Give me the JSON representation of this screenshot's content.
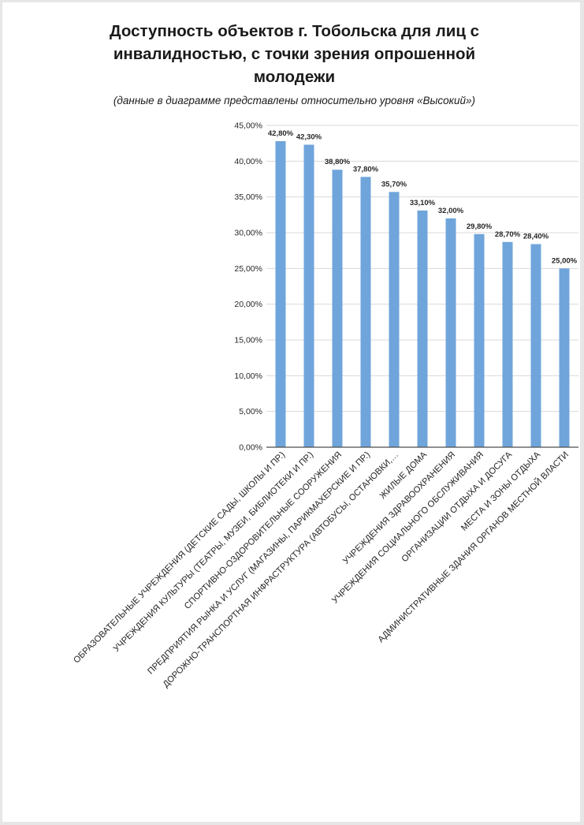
{
  "title_lines": [
    "Доступность объектов г. Тобольска для лиц с",
    "инвалидностью, с точки зрения опрошенной",
    "молодежи"
  ],
  "subtitle": "(данные  в диаграмме представлены относительно уровня «Высокий»)",
  "colors": {
    "bar": "#6fa5db",
    "grid": "#d9d9d9",
    "axis": "#4d4d4d",
    "text": "#262626"
  },
  "chart_data": {
    "type": "bar",
    "title": "Доступность объектов г. Тобольска для лиц с инвалидностью, с точки зрения опрошенной молодежи",
    "subtitle": "(данные  в диаграмме представлены относительно уровня «Высокий»)",
    "categories": [
      "ОБРАЗОВАТЕЛЬНЫЕ УЧРЕЖДЕНИЯ (ДЕТСКИЕ САДЫ, ШКОЛЫ И ПР.)",
      "УЧРЕЖДЕНИЯ КУЛЬТУРЫ (ТЕАТРЫ, МУЗЕИ, БИБЛИОТЕКИ И ПР.)",
      "СПОРТИВНО-ОЗДОРОВИТЕЛЬНЫЕ СООРУЖЕНИЯ",
      "ПРЕДПРИЯТИЯ РЫНКА И УСЛУГ (МАГАЗИНЫ, ПАРИКМАХЕРСКИЕ И ПР.)",
      "ДОРОЖНО-ТРАНСПОРТНАЯ ИНФРАСТРУКТУРА (АВТОБУСЫ, ОСТАНОВКИ,…",
      "ЖИЛЫЕ ДОМА",
      "УЧРЕЖДЕНИЯ ЗДРАВООХРАНЕНИЯ",
      "УЧРЕЖДЕНИЯ СОЦИАЛЬНОГО ОБСЛУЖИВАНИЯ",
      "ОРГАНИЗАЦИИ ОТДЫХА И ДОСУГА",
      "МЕСТА И ЗОНЫ ОТДЫХА",
      "АДМИНИСТРАТИВНЫЕ ЗДАНИЯ ОРГАНОВ МЕСТНОЙ ВЛАСТИ"
    ],
    "values": [
      42.8,
      42.3,
      38.8,
      37.8,
      35.7,
      33.1,
      32.0,
      29.8,
      28.7,
      28.4,
      25.0
    ],
    "data_labels": [
      "42,80%",
      "42,30%",
      "38,80%",
      "37,80%",
      "35,70%",
      "33,10%",
      "32,00%",
      "29,80%",
      "28,70%",
      "28,40%",
      "25,00%"
    ],
    "y_ticks": [
      0,
      5,
      10,
      15,
      20,
      25,
      30,
      35,
      40,
      45
    ],
    "y_tick_labels": [
      "0,00%",
      "5,00%",
      "10,00%",
      "15,00%",
      "20,00%",
      "25,00%",
      "30,00%",
      "35,00%",
      "40,00%",
      "45,00%"
    ],
    "ylim": [
      0,
      45
    ],
    "unit": "%",
    "grid": true,
    "legend": "none"
  }
}
